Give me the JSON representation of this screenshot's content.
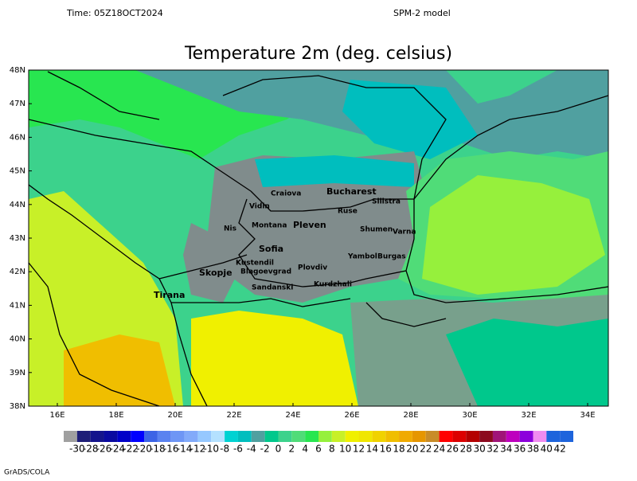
{
  "header": {
    "time": "Time: 05Z18OCT2024",
    "model": "SPM-2 model"
  },
  "title": "Temperature 2m (deg. celsius)",
  "lat_labels": [
    "48N",
    "47N",
    "46N",
    "45N",
    "44N",
    "43N",
    "42N",
    "41N",
    "40N",
    "39N",
    "38N"
  ],
  "lon_labels": [
    "16E",
    "18E",
    "20E",
    "22E",
    "24E",
    "26E",
    "28E",
    "30E",
    "32E",
    "34E"
  ],
  "cities": [
    "Craiova",
    "Bucharest",
    "Vidin",
    "Ruse",
    "Silistra",
    "Nis",
    "Montana",
    "Pleven",
    "Shumen",
    "Varna",
    "Sofia",
    "Kustendil",
    "Skopje",
    "Blagoevgrad",
    "Plovdiv",
    "Yambol",
    "Burgas",
    "Tirana",
    "Sandanski",
    "Kurdzhali"
  ],
  "colorbar": {
    "levels": [
      -30,
      -28,
      -26,
      -24,
      -22,
      -20,
      -18,
      -16,
      -14,
      -12,
      -10,
      -8,
      -6,
      -4,
      -2,
      0,
      2,
      4,
      6,
      8,
      10,
      12,
      14,
      16,
      18,
      20,
      22,
      24,
      26,
      28,
      30,
      32,
      34,
      36,
      38,
      40,
      42
    ],
    "colors": [
      "#a0a0a0",
      "#1e1e78",
      "#14148c",
      "#0a0aa0",
      "#0000c8",
      "#0000ff",
      "#3c64e6",
      "#5a82f0",
      "#6e96f5",
      "#82aafa",
      "#96c8ff",
      "#b4e1ff",
      "#00d2d2",
      "#00bebe",
      "#50a0a0",
      "#00c88c",
      "#3cd28c",
      "#50dc78",
      "#28e650",
      "#96f03c",
      "#c8f028",
      "#f0f000",
      "#f0e600",
      "#f0d200",
      "#f0be00",
      "#f0aa00",
      "#e69600",
      "#c88c28",
      "#ff0000",
      "#dc0000",
      "#b40000",
      "#8c0a1e",
      "#a01478",
      "#be00be",
      "#8c00dc",
      "#f08cf0",
      "#1e64dc",
      "#1e64dc"
    ]
  },
  "footer": "GrADS/COLA"
}
